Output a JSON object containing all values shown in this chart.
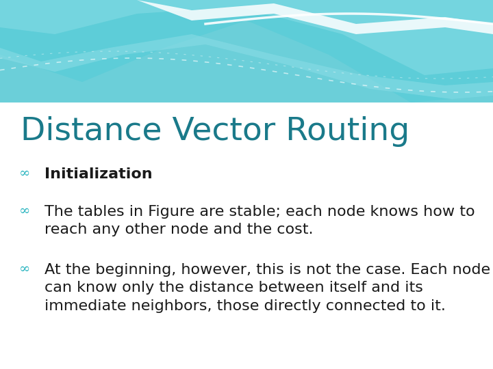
{
  "title": "Distance Vector Routing",
  "title_color": "#1a7a8a",
  "title_fontsize": 34,
  "bullet_color": "#2ab5c0",
  "text_color": "#1a1a1a",
  "background_color": "#ffffff",
  "bullets": [
    {
      "label": "Initialization",
      "bold": true,
      "fontsize": 16
    },
    {
      "label": "The tables in Figure are stable; each node knows how to\nreach any other node and the cost.",
      "bold": false,
      "fontsize": 16
    },
    {
      "label": "At the beginning, however, this is not the case. Each node\ncan know only the distance between itself and its\nimmediate neighbors, those directly connected to it.",
      "bold": false,
      "fontsize": 16
    }
  ],
  "wave1_color": "#5dcdd8",
  "wave2_color": "#7ed8e2",
  "wave3_color": "#a0e2e8",
  "wave_white": "#ffffff",
  "top_fill": "#6bcfd9"
}
